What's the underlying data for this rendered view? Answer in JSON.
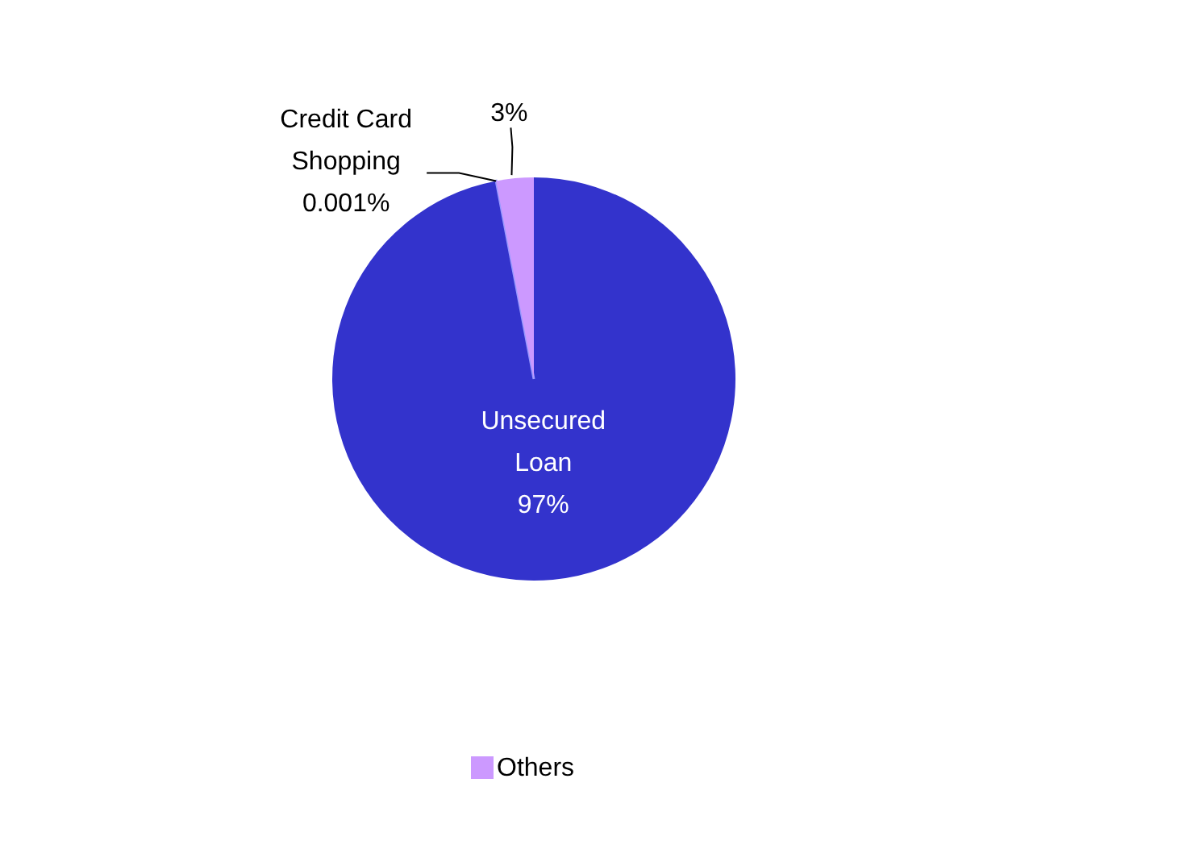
{
  "chart_data": {
    "type": "pie",
    "categories": [
      "Unsecured Loan",
      "Credit Card Shopping",
      "Others"
    ],
    "values": [
      97,
      0.001,
      3
    ],
    "colors": [
      "#3333cc",
      "#9999ff",
      "#cc99ff"
    ],
    "value_labels": [
      "97%",
      "0.001%",
      "3%"
    ],
    "legend": "bottom"
  }
}
